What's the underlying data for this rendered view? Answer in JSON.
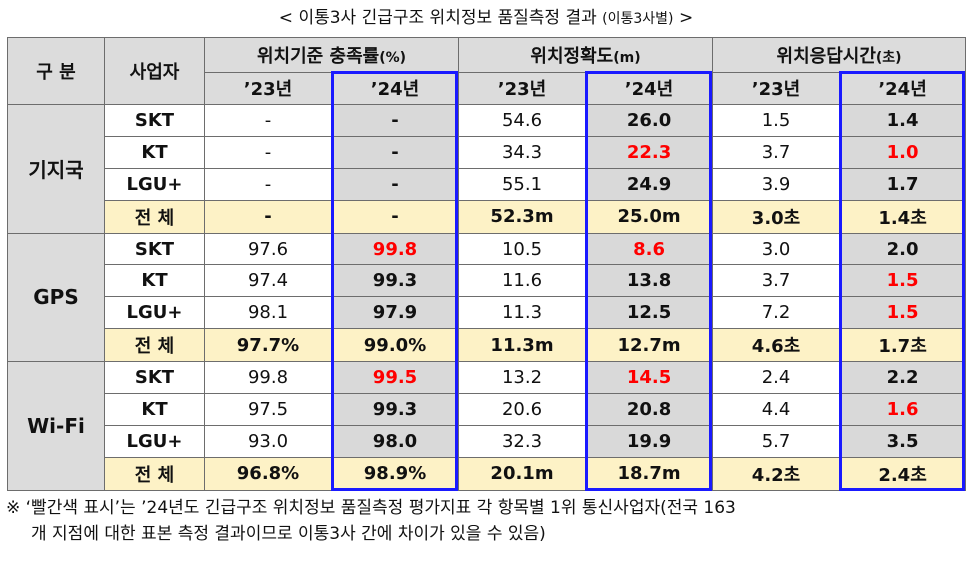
{
  "title": {
    "main": "< 이통3사 긴급구조 위치정보 품질측정 결과",
    "sub": "(이통3사별)",
    "close": ">"
  },
  "header": {
    "category": "구 분",
    "carrier": "사업자",
    "metrics": [
      {
        "label": "위치기준 충족률",
        "unit": "(%)"
      },
      {
        "label": "위치정확도",
        "unit": "(m)"
      },
      {
        "label": "위치응답시간",
        "unit": "(초)"
      }
    ],
    "year_prev": "’23년",
    "year_curr": "’24년"
  },
  "groups": [
    {
      "name": "기지국",
      "rows": [
        {
          "carrier": "SKT",
          "cells": [
            {
              "v": "-",
              "red": false
            },
            {
              "v": "-",
              "red": false
            },
            {
              "v": "54.6",
              "red": false
            },
            {
              "v": "26.0",
              "red": false
            },
            {
              "v": "1.5",
              "red": false
            },
            {
              "v": "1.4",
              "red": false
            }
          ]
        },
        {
          "carrier": "KT",
          "cells": [
            {
              "v": "-",
              "red": false
            },
            {
              "v": "-",
              "red": false
            },
            {
              "v": "34.3",
              "red": false
            },
            {
              "v": "22.3",
              "red": true
            },
            {
              "v": "3.7",
              "red": false
            },
            {
              "v": "1.0",
              "red": true
            }
          ]
        },
        {
          "carrier": "LGU+",
          "cells": [
            {
              "v": "-",
              "red": false
            },
            {
              "v": "-",
              "red": false
            },
            {
              "v": "55.1",
              "red": false
            },
            {
              "v": "24.9",
              "red": false
            },
            {
              "v": "3.9",
              "red": false
            },
            {
              "v": "1.7",
              "red": false
            }
          ]
        }
      ],
      "total": {
        "label": "전 체",
        "cells": [
          "-",
          "-",
          "52.3m",
          "25.0m",
          "3.0초",
          "1.4초"
        ]
      }
    },
    {
      "name": "GPS",
      "rows": [
        {
          "carrier": "SKT",
          "cells": [
            {
              "v": "97.6",
              "red": false
            },
            {
              "v": "99.8",
              "red": true
            },
            {
              "v": "10.5",
              "red": false
            },
            {
              "v": "8.6",
              "red": true
            },
            {
              "v": "3.0",
              "red": false
            },
            {
              "v": "2.0",
              "red": false
            }
          ]
        },
        {
          "carrier": "KT",
          "cells": [
            {
              "v": "97.4",
              "red": false
            },
            {
              "v": "99.3",
              "red": false
            },
            {
              "v": "11.6",
              "red": false
            },
            {
              "v": "13.8",
              "red": false
            },
            {
              "v": "3.7",
              "red": false
            },
            {
              "v": "1.5",
              "red": true
            }
          ]
        },
        {
          "carrier": "LGU+",
          "cells": [
            {
              "v": "98.1",
              "red": false
            },
            {
              "v": "97.9",
              "red": false
            },
            {
              "v": "11.3",
              "red": false
            },
            {
              "v": "12.5",
              "red": false
            },
            {
              "v": "7.2",
              "red": false
            },
            {
              "v": "1.5",
              "red": true
            }
          ]
        }
      ],
      "total": {
        "label": "전 체",
        "cells": [
          "97.7%",
          "99.0%",
          "11.3m",
          "12.7m",
          "4.6초",
          "1.7초"
        ]
      }
    },
    {
      "name": "Wi-Fi",
      "rows": [
        {
          "carrier": "SKT",
          "cells": [
            {
              "v": "99.8",
              "red": false
            },
            {
              "v": "99.5",
              "red": true
            },
            {
              "v": "13.2",
              "red": false
            },
            {
              "v": "14.5",
              "red": true
            },
            {
              "v": "2.4",
              "red": false
            },
            {
              "v": "2.2",
              "red": false
            }
          ]
        },
        {
          "carrier": "KT",
          "cells": [
            {
              "v": "97.5",
              "red": false
            },
            {
              "v": "99.3",
              "red": false
            },
            {
              "v": "20.6",
              "red": false
            },
            {
              "v": "20.8",
              "red": false
            },
            {
              "v": "4.4",
              "red": false
            },
            {
              "v": "1.6",
              "red": true
            }
          ]
        },
        {
          "carrier": "LGU+",
          "cells": [
            {
              "v": "93.0",
              "red": false
            },
            {
              "v": "98.0",
              "red": false
            },
            {
              "v": "32.3",
              "red": false
            },
            {
              "v": "19.9",
              "red": false
            },
            {
              "v": "5.7",
              "red": false
            },
            {
              "v": "3.5",
              "red": false
            }
          ]
        }
      ],
      "total": {
        "label": "전 체",
        "cells": [
          "96.8%",
          "98.9%",
          "20.1m",
          "18.7m",
          "4.2초",
          "2.4초"
        ]
      }
    }
  ],
  "colors": {
    "red_highlight": "#ff0000",
    "current_year_border": "#1a1aff",
    "header_bg": "#dcdcdc",
    "total_bg": "#fdf2c6"
  },
  "note": {
    "line1": "※ ‘빨간색 표시’는 ’24년도 긴급구조 위치정보 품질측정 평가지표 각 항목별 1위 통신사업자(전국 163",
    "line2": "개 지점에 대한 표본 측정 결과이므로 이통3사 간에 차이가 있을 수 있음)"
  }
}
